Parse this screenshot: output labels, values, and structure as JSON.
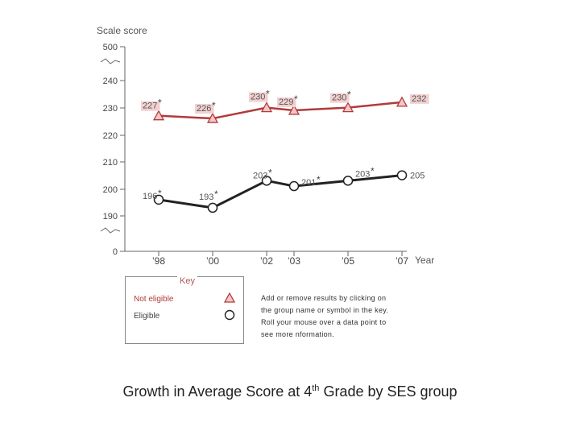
{
  "chart_data": {
    "type": "line",
    "ylabel": "Scale score",
    "xlabel": "Year",
    "x": [
      "1998",
      "2000",
      "2002",
      "2003",
      "2005",
      "2007"
    ],
    "xtick_labels": [
      "’98",
      "’00",
      "’02",
      "’03",
      "’05",
      "’07"
    ],
    "ytick_labels": [
      "0",
      "190",
      "200",
      "210",
      "220",
      "230",
      "240",
      "500"
    ],
    "ylim": [
      190,
      240
    ],
    "axis_breaks": [
      "below 190",
      "above 240"
    ],
    "grid": false,
    "series": [
      {
        "name": "Not eligible",
        "color": "#b33a3a",
        "marker": "triangle-icon",
        "values": [
          227,
          226,
          230,
          229,
          230,
          232
        ],
        "labels": [
          "227",
          "226",
          "230",
          "229",
          "230",
          "232"
        ],
        "significant": [
          true,
          true,
          true,
          true,
          true,
          false
        ]
      },
      {
        "name": "Eligible",
        "color": "#222222",
        "marker": "circle-icon",
        "values": [
          196,
          193,
          203,
          201,
          203,
          205
        ],
        "labels": [
          "196",
          "193",
          "203",
          "201",
          "203",
          "205"
        ],
        "significant": [
          true,
          true,
          true,
          true,
          true,
          false
        ]
      }
    ]
  },
  "key": {
    "title": "Key",
    "items": [
      {
        "label": "Not eligible",
        "icon": "triangle-icon"
      },
      {
        "label": "Eligible",
        "icon": "circle-icon"
      }
    ]
  },
  "instructions": [
    "Add or remove results by clicking on",
    "the group name or symbol in the key.",
    "Roll your mouse over a data point to",
    "see more nformation."
  ],
  "caption": {
    "before": "Growth in Average Score at 4",
    "sup": "th",
    "after": " Grade by SES group"
  }
}
